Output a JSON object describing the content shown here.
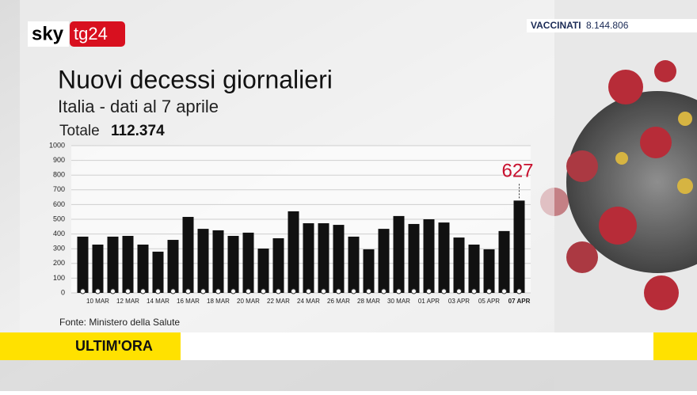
{
  "ticker": {
    "label": "VACCINATI",
    "value": "8.144.806"
  },
  "logo": {
    "part1": "sky",
    "part2": "tg24"
  },
  "chart_data": {
    "type": "bar",
    "title": "Nuovi decessi giornalieri",
    "subtitle": "Italia - dati al 7 aprile",
    "total_label": "Totale",
    "total": "112.374",
    "source": "Fonte: Ministero della Salute",
    "categories": [
      null,
      "10 MAR",
      null,
      "12 MAR",
      null,
      "14 MAR",
      null,
      "16 MAR",
      null,
      "18 MAR",
      null,
      "20 MAR",
      null,
      "22 MAR",
      null,
      "24 MAR",
      null,
      "26 MAR",
      null,
      "28 MAR",
      null,
      "30 MAR",
      null,
      "01 APR",
      null,
      "03 APR",
      null,
      "05 APR",
      null,
      "07 APR"
    ],
    "values": [
      382,
      328,
      382,
      387,
      328,
      280,
      360,
      516,
      435,
      425,
      387,
      409,
      301,
      371,
      554,
      473,
      473,
      462,
      382,
      296,
      435,
      522,
      468,
      500,
      478,
      376,
      328,
      296,
      420,
      627
    ],
    "color": "#111111",
    "highlight_color": "#c8102e",
    "ylim": [
      0,
      1000
    ],
    "yticks": [
      0,
      100,
      200,
      300,
      400,
      500,
      600,
      700,
      800,
      900,
      1000
    ],
    "grid": true
  },
  "banner": {
    "label": "ULTIM'ORA"
  }
}
